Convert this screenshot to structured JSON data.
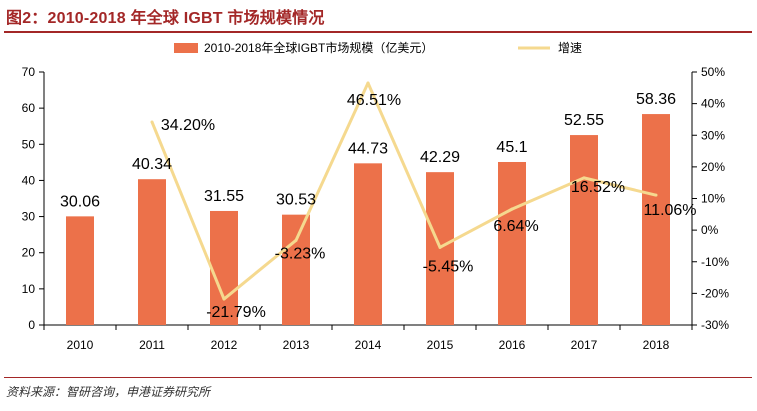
{
  "page": {
    "figure_title": "图2：2010-2018 年全球 IGBT 市场规模情况",
    "source": "资料来源：智研咨询，申港证券研究所"
  },
  "colors": {
    "title": "#a32727",
    "bar": "#ec714a",
    "line": "#f5d98f",
    "axis": "#000000"
  },
  "chart_data": {
    "type": "bar",
    "title": "",
    "categories": [
      "2010",
      "2011",
      "2012",
      "2013",
      "2014",
      "2015",
      "2016",
      "2017",
      "2018"
    ],
    "series": [
      {
        "name": "2010-2018年全球IGBT市场规模（亿美元）",
        "type": "bar",
        "axis": "left",
        "values": [
          30.06,
          40.34,
          31.55,
          30.53,
          44.73,
          42.29,
          45.1,
          52.55,
          58.36
        ],
        "labels": [
          "30.06",
          "40.34",
          "31.55",
          "30.53",
          "44.73",
          "42.29",
          "45.1",
          "52.55",
          "58.36"
        ]
      },
      {
        "name": "增速",
        "type": "line",
        "axis": "right",
        "values": [
          null,
          34.2,
          -21.79,
          -3.23,
          46.51,
          -5.45,
          6.64,
          16.52,
          11.06
        ],
        "labels": [
          "",
          "34.20%",
          "-21.79%",
          "-3.23%",
          "46.51%",
          "-5.45%",
          "6.64%",
          "16.52%",
          "11.06%"
        ]
      }
    ],
    "y_left": {
      "min": 0,
      "max": 70,
      "ticks": [
        "0",
        "10",
        "20",
        "30",
        "40",
        "50",
        "60",
        "70"
      ]
    },
    "y_right": {
      "min": -30,
      "max": 50,
      "ticks": [
        "-30%",
        "-20%",
        "-10%",
        "0%",
        "10%",
        "20%",
        "30%",
        "40%",
        "50%"
      ]
    },
    "legend_position": "top-center",
    "grid": false
  }
}
